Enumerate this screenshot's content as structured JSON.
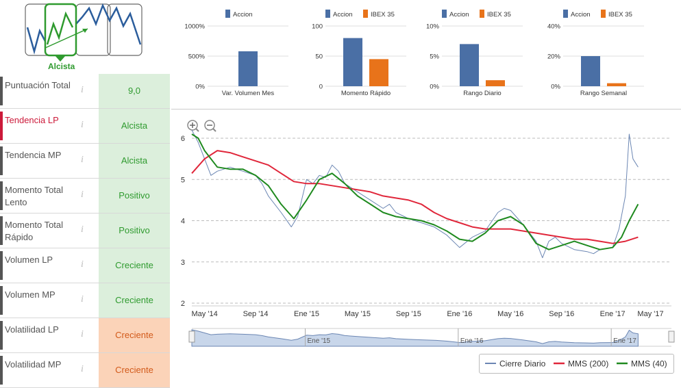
{
  "trend_widget": {
    "label": "Alcista"
  },
  "rows": [
    {
      "name": "Puntuación Total",
      "value": "9,0",
      "tone": "green",
      "highlight": false
    },
    {
      "name": "Tendencia LP",
      "value": "Alcista",
      "tone": "green",
      "highlight": true
    },
    {
      "name": "Tendencia MP",
      "value": "Alcista",
      "tone": "green",
      "highlight": false
    },
    {
      "name": "Momento Total Lento",
      "value": "Positivo",
      "tone": "green",
      "highlight": false
    },
    {
      "name": "Momento Total Rápido",
      "value": "Positivo",
      "tone": "green",
      "highlight": false
    },
    {
      "name": "Volumen LP",
      "value": "Creciente",
      "tone": "green",
      "highlight": false
    },
    {
      "name": "Volumen MP",
      "value": "Creciente",
      "tone": "green",
      "highlight": false
    },
    {
      "name": "Volatilidad LP",
      "value": "Creciente",
      "tone": "orange",
      "highlight": false
    },
    {
      "name": "Volatilidad MP",
      "value": "Creciente",
      "tone": "orange",
      "highlight": false
    }
  ],
  "info_glyph": "i",
  "colors": {
    "accion": "#4a6fa5",
    "ibex": "#e8731a",
    "price": "#6b86b3",
    "mms200": "#e0263a",
    "mms40": "#1f8a1f"
  },
  "chart_data": [
    {
      "type": "bar",
      "title": "Var. Volumen Mes",
      "legend": [
        "Accion"
      ],
      "categories": [
        "Var. Volumen Mes"
      ],
      "series": [
        {
          "name": "Accion",
          "values": [
            580
          ]
        }
      ],
      "yticks": [
        "0%",
        "500%",
        "1000%"
      ],
      "ylim": [
        0,
        1000
      ]
    },
    {
      "type": "bar",
      "title": "Momento Rápido",
      "legend": [
        "Accion",
        "IBEX 35"
      ],
      "categories": [
        "Momento Rápido"
      ],
      "series": [
        {
          "name": "Accion",
          "values": [
            80
          ]
        },
        {
          "name": "IBEX 35",
          "values": [
            45
          ]
        }
      ],
      "yticks": [
        "0",
        "50",
        "100"
      ],
      "ylim": [
        0,
        100
      ]
    },
    {
      "type": "bar",
      "title": "Rango Diario",
      "legend": [
        "Accion",
        "IBEX 35"
      ],
      "categories": [
        "Rango Diario"
      ],
      "series": [
        {
          "name": "Accion",
          "values": [
            7
          ]
        },
        {
          "name": "IBEX 35",
          "values": [
            1
          ]
        }
      ],
      "yticks": [
        "0%",
        "5%",
        "10%"
      ],
      "ylim": [
        0,
        10
      ]
    },
    {
      "type": "bar",
      "title": "Rango Semanal",
      "legend": [
        "Accion",
        "IBEX 35"
      ],
      "categories": [
        "Rango Semanal"
      ],
      "series": [
        {
          "name": "Accion",
          "values": [
            20
          ]
        },
        {
          "name": "IBEX 35",
          "values": [
            2
          ]
        }
      ],
      "yticks": [
        "0%",
        "20%",
        "40%"
      ],
      "ylim": [
        0,
        40
      ]
    },
    {
      "type": "line",
      "yticks": [
        "2",
        "3",
        "4",
        "5",
        "6"
      ],
      "ylim": [
        2,
        6.2
      ],
      "xlim": [
        0,
        36
      ],
      "xticks": [
        {
          "label": "May '14",
          "t": 1
        },
        {
          "label": "Sep '14",
          "t": 5
        },
        {
          "label": "Ene '15",
          "t": 9
        },
        {
          "label": "May '15",
          "t": 13
        },
        {
          "label": "Sep '15",
          "t": 17
        },
        {
          "label": "Ene '16",
          "t": 21
        },
        {
          "label": "May '16",
          "t": 25
        },
        {
          "label": "Sep '16",
          "t": 29
        },
        {
          "label": "Ene '17",
          "t": 33
        },
        {
          "label": "May '17",
          "t": 37
        }
      ],
      "navigator_labels": [
        {
          "label": "Ene '15",
          "t": 9
        },
        {
          "label": "Ene '16",
          "t": 21
        },
        {
          "label": "Ene '17",
          "t": 33
        }
      ],
      "series": [
        {
          "name": "Cierre Diario",
          "points": [
            [
              0,
              6.2
            ],
            [
              0.5,
              5.9
            ],
            [
              1,
              5.5
            ],
            [
              1.5,
              5.1
            ],
            [
              2,
              5.2
            ],
            [
              3,
              5.3
            ],
            [
              4,
              5.2
            ],
            [
              5,
              5.1
            ],
            [
              5.5,
              4.9
            ],
            [
              6,
              4.6
            ],
            [
              7,
              4.2
            ],
            [
              7.8,
              3.85
            ],
            [
              8.3,
              4.1
            ],
            [
              9,
              5.0
            ],
            [
              9.5,
              4.9
            ],
            [
              10,
              5.1
            ],
            [
              10.5,
              5.05
            ],
            [
              11,
              5.35
            ],
            [
              11.5,
              5.2
            ],
            [
              12,
              4.9
            ],
            [
              13,
              4.7
            ],
            [
              14,
              4.5
            ],
            [
              15,
              4.3
            ],
            [
              15.5,
              4.4
            ],
            [
              16,
              4.2
            ],
            [
              17,
              4.05
            ],
            [
              18,
              3.95
            ],
            [
              19,
              3.85
            ],
            [
              20,
              3.65
            ],
            [
              21,
              3.35
            ],
            [
              22,
              3.6
            ],
            [
              23,
              3.75
            ],
            [
              24,
              4.2
            ],
            [
              24.5,
              4.3
            ],
            [
              25,
              4.25
            ],
            [
              26,
              3.9
            ],
            [
              27,
              3.5
            ],
            [
              27.5,
              3.1
            ],
            [
              28,
              3.5
            ],
            [
              28.5,
              3.6
            ],
            [
              29,
              3.45
            ],
            [
              30,
              3.3
            ],
            [
              31,
              3.25
            ],
            [
              31.5,
              3.2
            ],
            [
              32,
              3.3
            ],
            [
              33,
              3.35
            ],
            [
              33.5,
              3.8
            ],
            [
              34,
              4.6
            ],
            [
              34.3,
              6.1
            ],
            [
              34.6,
              5.5
            ],
            [
              35,
              5.3
            ]
          ]
        },
        {
          "name": "MMS (200)",
          "points": [
            [
              0,
              5.15
            ],
            [
              1,
              5.5
            ],
            [
              2,
              5.7
            ],
            [
              3,
              5.65
            ],
            [
              4,
              5.55
            ],
            [
              5,
              5.45
            ],
            [
              6,
              5.35
            ],
            [
              7,
              5.15
            ],
            [
              8,
              4.95
            ],
            [
              9,
              4.9
            ],
            [
              10,
              4.9
            ],
            [
              11,
              4.85
            ],
            [
              12,
              4.8
            ],
            [
              13,
              4.75
            ],
            [
              14,
              4.7
            ],
            [
              15,
              4.6
            ],
            [
              16,
              4.55
            ],
            [
              17,
              4.5
            ],
            [
              18,
              4.4
            ],
            [
              19,
              4.2
            ],
            [
              20,
              4.05
            ],
            [
              21,
              3.95
            ],
            [
              22,
              3.85
            ],
            [
              23,
              3.8
            ],
            [
              24,
              3.8
            ],
            [
              25,
              3.8
            ],
            [
              26,
              3.75
            ],
            [
              27,
              3.7
            ],
            [
              28,
              3.65
            ],
            [
              29,
              3.6
            ],
            [
              30,
              3.55
            ],
            [
              31,
              3.55
            ],
            [
              32,
              3.5
            ],
            [
              33,
              3.45
            ],
            [
              34,
              3.5
            ],
            [
              35,
              3.6
            ]
          ]
        },
        {
          "name": "MMS (40)",
          "points": [
            [
              0,
              6.1
            ],
            [
              0.5,
              6.0
            ],
            [
              1,
              5.7
            ],
            [
              2,
              5.3
            ],
            [
              3,
              5.25
            ],
            [
              4,
              5.25
            ],
            [
              5,
              5.1
            ],
            [
              6,
              4.85
            ],
            [
              7,
              4.4
            ],
            [
              8,
              4.05
            ],
            [
              9,
              4.5
            ],
            [
              10,
              5.0
            ],
            [
              11,
              5.15
            ],
            [
              12,
              4.9
            ],
            [
              13,
              4.6
            ],
            [
              14,
              4.4
            ],
            [
              15,
              4.2
            ],
            [
              16,
              4.1
            ],
            [
              17,
              4.05
            ],
            [
              18,
              4.0
            ],
            [
              19,
              3.9
            ],
            [
              20,
              3.75
            ],
            [
              21,
              3.55
            ],
            [
              22,
              3.5
            ],
            [
              23,
              3.7
            ],
            [
              24,
              4.0
            ],
            [
              25,
              4.1
            ],
            [
              26,
              3.9
            ],
            [
              27,
              3.45
            ],
            [
              28,
              3.3
            ],
            [
              29,
              3.4
            ],
            [
              30,
              3.5
            ],
            [
              31,
              3.4
            ],
            [
              32,
              3.3
            ],
            [
              33,
              3.35
            ],
            [
              33.7,
              3.6
            ],
            [
              34.3,
              4.0
            ],
            [
              35,
              4.4
            ]
          ]
        }
      ],
      "legend": [
        "Cierre Diario",
        "MMS (200)",
        "MMS (40)"
      ]
    }
  ]
}
